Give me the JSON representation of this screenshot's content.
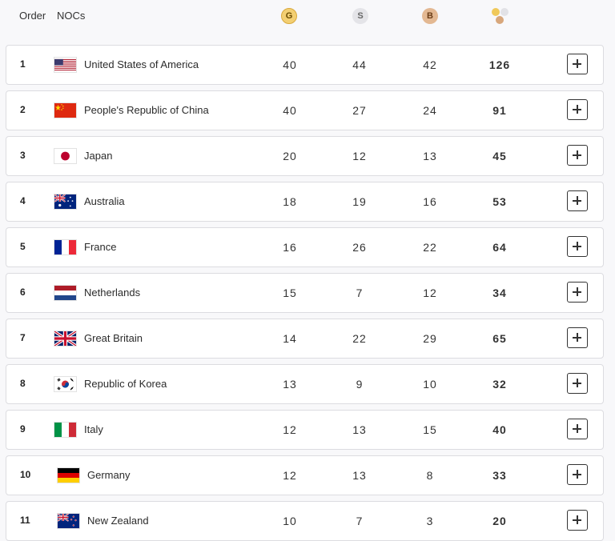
{
  "header": {
    "order_label": "Order",
    "nocs_label": "NOCs",
    "gold_badge": "G",
    "silver_badge": "S",
    "bronze_badge": "B",
    "total_icon": "medals-total-icon"
  },
  "colors": {
    "gold": "#f3cf72",
    "silver": "#e4e4e8",
    "bronze": "#e3b892"
  },
  "rows": [
    {
      "order": "1",
      "country": "United States of America",
      "flag": "usa",
      "gold": "40",
      "silver": "44",
      "bronze": "42",
      "total": "126"
    },
    {
      "order": "2",
      "country": "People's Republic of China",
      "flag": "china",
      "gold": "40",
      "silver": "27",
      "bronze": "24",
      "total": "91"
    },
    {
      "order": "3",
      "country": "Japan",
      "flag": "japan",
      "gold": "20",
      "silver": "12",
      "bronze": "13",
      "total": "45"
    },
    {
      "order": "4",
      "country": "Australia",
      "flag": "australia",
      "gold": "18",
      "silver": "19",
      "bronze": "16",
      "total": "53"
    },
    {
      "order": "5",
      "country": "France",
      "flag": "france",
      "gold": "16",
      "silver": "26",
      "bronze": "22",
      "total": "64"
    },
    {
      "order": "6",
      "country": "Netherlands",
      "flag": "netherlands",
      "gold": "15",
      "silver": "7",
      "bronze": "12",
      "total": "34"
    },
    {
      "order": "7",
      "country": "Great Britain",
      "flag": "great-britain",
      "gold": "14",
      "silver": "22",
      "bronze": "29",
      "total": "65"
    },
    {
      "order": "8",
      "country": "Republic of Korea",
      "flag": "korea",
      "gold": "13",
      "silver": "9",
      "bronze": "10",
      "total": "32"
    },
    {
      "order": "9",
      "country": "Italy",
      "flag": "italy",
      "gold": "12",
      "silver": "13",
      "bronze": "15",
      "total": "40"
    },
    {
      "order": "10",
      "country": "Germany",
      "flag": "germany",
      "gold": "12",
      "silver": "13",
      "bronze": "8",
      "total": "33"
    },
    {
      "order": "11",
      "country": "New Zealand",
      "flag": "new-zealand",
      "gold": "10",
      "silver": "7",
      "bronze": "3",
      "total": "20"
    }
  ]
}
